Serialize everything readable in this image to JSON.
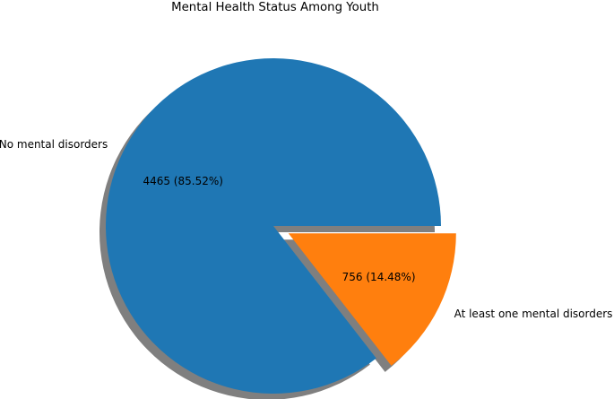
{
  "chart_data": {
    "type": "pie",
    "title": "Mental Health Status Among Youth",
    "slices": [
      {
        "label": "No mental disorders",
        "value": 4465,
        "percent": 85.52,
        "data_label": "4465 (85.52%)",
        "color": "#1f77b4",
        "exploded": false
      },
      {
        "label": "At least one mental disorders",
        "value": 756,
        "percent": 14.48,
        "data_label": "756 (14.48%)",
        "color": "#ff7f0e",
        "exploded": true
      }
    ],
    "shadow": true,
    "legend": false,
    "start_angle_deg": 0,
    "direction": "counterclockwise"
  }
}
